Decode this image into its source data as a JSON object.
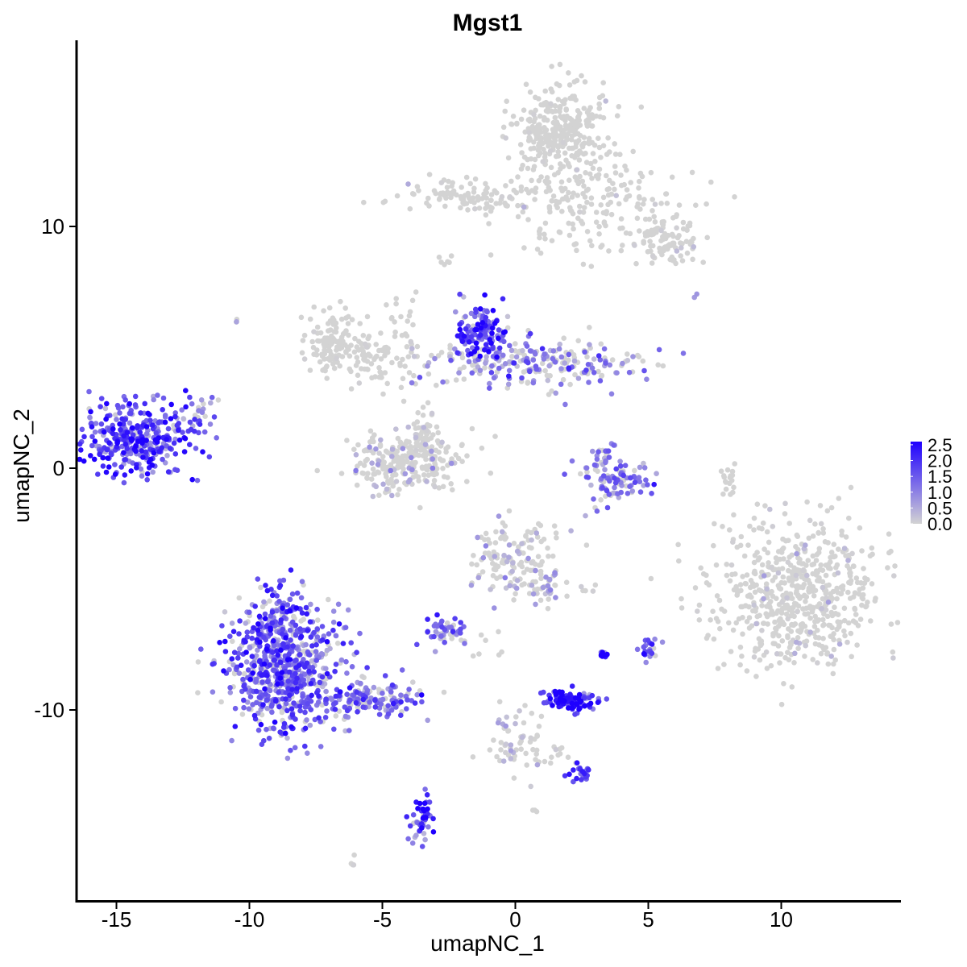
{
  "chart_data": {
    "type": "scatter",
    "title": "Mgst1",
    "xlabel": "umapNC_1",
    "ylabel": "umapNC_2",
    "xlim": [
      -16.5,
      14.5
    ],
    "ylim": [
      -17.9,
      17.7
    ],
    "xticks": [
      -15,
      -10,
      -5,
      0,
      5,
      10
    ],
    "yticks": [
      -10,
      0,
      10
    ],
    "xtick_labels": [
      "-15",
      "-10",
      "-5",
      "0",
      "5",
      "10"
    ],
    "ytick_labels": [
      "-10",
      "0",
      "10"
    ],
    "grid": false,
    "colors": {
      "low": "#d3d3d3",
      "high": "#1f00ff"
    },
    "legend": {
      "position": "right",
      "breaks": [
        2.5,
        2.0,
        1.5,
        1.0,
        0.5,
        0.0
      ],
      "labels": [
        "2.5",
        "2.0",
        "1.5",
        "1.0",
        "0.5",
        "0.0"
      ],
      "min": 0.0,
      "max": 2.6
    },
    "clusters": [
      {
        "cx": 1.8,
        "cy": 14.0,
        "sx": 0.9,
        "sy": 1.0,
        "n": 320,
        "expr_mean": 0.0,
        "expr_frac": 0.02
      },
      {
        "cx": 2.8,
        "cy": 10.8,
        "sx": 1.8,
        "sy": 1.0,
        "n": 170,
        "expr_mean": 0.0,
        "expr_frac": 0.02
      },
      {
        "cx": 5.8,
        "cy": 9.4,
        "sx": 0.5,
        "sy": 0.5,
        "n": 90,
        "expr_mean": 0.0,
        "expr_frac": 0.05
      },
      {
        "cx": -1.5,
        "cy": 11.2,
        "sx": 1.5,
        "sy": 0.35,
        "n": 110,
        "expr_mean": 0.0,
        "expr_frac": 0.03
      },
      {
        "cx": -6.8,
        "cy": 5.2,
        "sx": 0.6,
        "sy": 0.6,
        "n": 110,
        "expr_mean": 0.0,
        "expr_frac": 0.02
      },
      {
        "cx": -5.0,
        "cy": 4.4,
        "sx": 1.4,
        "sy": 0.6,
        "n": 100,
        "expr_mean": 0.0,
        "expr_frac": 0.05
      },
      {
        "cx": -4.2,
        "cy": 0.2,
        "sx": 1.1,
        "sy": 0.6,
        "n": 230,
        "expr_mean": 0.4,
        "expr_frac": 0.25
      },
      {
        "cx": -3.5,
        "cy": 1.3,
        "sx": 0.3,
        "sy": 0.5,
        "n": 50,
        "expr_mean": 0.1,
        "expr_frac": 0.08
      },
      {
        "cx": -1.3,
        "cy": 5.6,
        "sx": 0.45,
        "sy": 0.6,
        "n": 120,
        "expr_mean": 1.8,
        "expr_frac": 0.95
      },
      {
        "cx": 0.8,
        "cy": 4.4,
        "sx": 2.0,
        "sy": 0.55,
        "n": 230,
        "expr_mean": 1.0,
        "expr_frac": 0.6
      },
      {
        "cx": -14.3,
        "cy": 1.2,
        "sx": 1.0,
        "sy": 0.75,
        "n": 360,
        "expr_mean": 1.7,
        "expr_frac": 0.97
      },
      {
        "cx": -11.8,
        "cy": 2.2,
        "sx": 0.35,
        "sy": 0.35,
        "n": 25,
        "expr_mean": 1.2,
        "expr_frac": 0.8
      },
      {
        "cx": 3.8,
        "cy": -0.5,
        "sx": 0.7,
        "sy": 0.5,
        "n": 90,
        "expr_mean": 1.2,
        "expr_frac": 0.75
      },
      {
        "cx": 3.3,
        "cy": 0.6,
        "sx": 0.25,
        "sy": 0.4,
        "n": 25,
        "expr_mean": 1.0,
        "expr_frac": 0.7
      },
      {
        "cx": 10.6,
        "cy": -5.3,
        "sx": 1.6,
        "sy": 1.5,
        "n": 620,
        "expr_mean": 0.15,
        "expr_frac": 0.1
      },
      {
        "cx": 0.0,
        "cy": -3.7,
        "sx": 0.9,
        "sy": 0.75,
        "n": 140,
        "expr_mean": 0.5,
        "expr_frac": 0.25
      },
      {
        "cx": 1.1,
        "cy": -5.0,
        "sx": 0.4,
        "sy": 0.35,
        "n": 30,
        "expr_mean": 0.6,
        "expr_frac": 0.4
      },
      {
        "cx": -8.7,
        "cy": -8.4,
        "sx": 1.1,
        "sy": 1.3,
        "n": 650,
        "expr_mean": 1.4,
        "expr_frac": 0.85
      },
      {
        "cx": -8.9,
        "cy": -6.0,
        "sx": 0.5,
        "sy": 0.7,
        "n": 100,
        "expr_mean": 1.5,
        "expr_frac": 0.85
      },
      {
        "cx": -5.5,
        "cy": -9.6,
        "sx": 1.1,
        "sy": 0.4,
        "n": 150,
        "expr_mean": 1.2,
        "expr_frac": 0.75
      },
      {
        "cx": -2.6,
        "cy": -6.8,
        "sx": 0.5,
        "sy": 0.3,
        "n": 45,
        "expr_mean": 1.2,
        "expr_frac": 0.8
      },
      {
        "cx": 2.0,
        "cy": -9.6,
        "sx": 0.5,
        "sy": 0.2,
        "n": 110,
        "expr_mean": 1.9,
        "expr_frac": 0.98
      },
      {
        "cx": 0.0,
        "cy": -11.3,
        "sx": 0.5,
        "sy": 0.7,
        "n": 60,
        "expr_mean": 0.3,
        "expr_frac": 0.25
      },
      {
        "cx": 2.4,
        "cy": -12.6,
        "sx": 0.3,
        "sy": 0.2,
        "n": 25,
        "expr_mean": 1.6,
        "expr_frac": 0.95
      },
      {
        "cx": -3.5,
        "cy": -14.6,
        "sx": 0.2,
        "sy": 0.6,
        "n": 50,
        "expr_mean": 1.8,
        "expr_frac": 0.95
      },
      {
        "cx": 3.3,
        "cy": -7.7,
        "sx": 0.08,
        "sy": 0.08,
        "n": 12,
        "expr_mean": 2.5,
        "expr_frac": 1.0
      },
      {
        "cx": 5.0,
        "cy": -7.4,
        "sx": 0.2,
        "sy": 0.25,
        "n": 20,
        "expr_mean": 1.7,
        "expr_frac": 0.95
      },
      {
        "cx": 8.0,
        "cy": -0.5,
        "sx": 0.2,
        "sy": 0.5,
        "n": 18,
        "expr_mean": 0.0,
        "expr_frac": 0.0
      },
      {
        "cx": -4.2,
        "cy": 6.0,
        "sx": 0.4,
        "sy": 0.6,
        "n": 15,
        "expr_mean": 0.0,
        "expr_frac": 0.0
      },
      {
        "cx": -2.6,
        "cy": 8.6,
        "sx": 0.2,
        "sy": 0.15,
        "n": 6,
        "expr_mean": 0.0,
        "expr_frac": 0.0
      },
      {
        "cx": -2.0,
        "cy": 0.9,
        "sx": 0.6,
        "sy": 0.4,
        "n": 12,
        "expr_mean": 0.0,
        "expr_frac": 0.05
      },
      {
        "cx": -0.8,
        "cy": -7.3,
        "sx": 0.6,
        "sy": 0.4,
        "n": 8,
        "expr_mean": 0.0,
        "expr_frac": 0.0
      },
      {
        "cx": 1.6,
        "cy": -12.0,
        "sx": 0.5,
        "sy": 0.25,
        "n": 10,
        "expr_mean": 0.2,
        "expr_frac": 0.15
      },
      {
        "cx": -10.5,
        "cy": 6.1,
        "sx": 0.05,
        "sy": 0.05,
        "n": 3,
        "expr_mean": 0.5,
        "expr_frac": 0.6
      },
      {
        "cx": 6.8,
        "cy": 7.1,
        "sx": 0.05,
        "sy": 0.05,
        "n": 2,
        "expr_mean": 0.5,
        "expr_frac": 1.0
      },
      {
        "cx": -6.0,
        "cy": -16.3,
        "sx": 0.1,
        "sy": 0.1,
        "n": 4,
        "expr_mean": 0.3,
        "expr_frac": 0.3
      },
      {
        "cx": 0.6,
        "cy": -14.2,
        "sx": 0.1,
        "sy": 0.05,
        "n": 3,
        "expr_mean": 0.3,
        "expr_frac": 0.3
      },
      {
        "cx": 2.8,
        "cy": -5.0,
        "sx": 0.15,
        "sy": 0.08,
        "n": 5,
        "expr_mean": 0.5,
        "expr_frac": 0.5
      }
    ]
  }
}
